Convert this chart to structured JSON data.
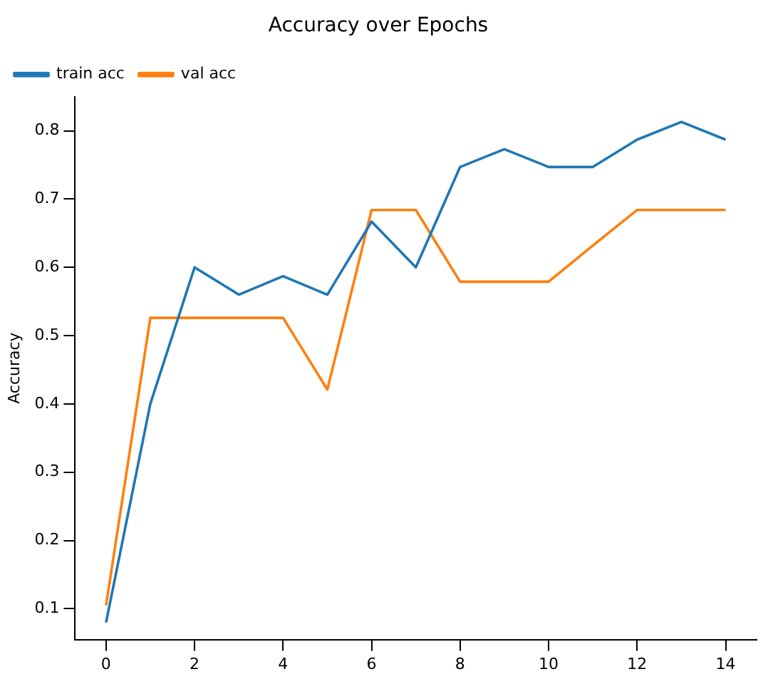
{
  "chart_data": {
    "type": "line",
    "title": "Accuracy over Epochs",
    "ylabel": "Accuracy",
    "x": [
      0,
      1,
      2,
      3,
      4,
      5,
      6,
      7,
      8,
      9,
      10,
      11,
      12,
      13,
      14
    ],
    "series": [
      {
        "name": "train acc",
        "color": "#1f77b4",
        "values": [
          0.08,
          0.4,
          0.6,
          0.56,
          0.587,
          0.56,
          0.667,
          0.6,
          0.747,
          0.773,
          0.747,
          0.747,
          0.787,
          0.813,
          0.787
        ]
      },
      {
        "name": "val acc",
        "color": "#ff7f0e",
        "values": [
          0.105,
          0.526,
          0.526,
          0.526,
          0.526,
          0.421,
          0.684,
          0.684,
          0.579,
          0.579,
          0.579,
          0.632,
          0.684,
          0.684,
          0.684
        ]
      }
    ],
    "xlim": [
      -0.7,
      14.7
    ],
    "xticks": [
      0,
      2,
      4,
      6,
      8,
      10,
      12,
      14
    ],
    "ylim": [
      0.055,
      0.85
    ],
    "yticks": [
      0.1,
      0.2,
      0.3,
      0.4,
      0.5,
      0.6,
      0.7,
      0.8
    ],
    "grid": false,
    "legend": "top left",
    "marker": "none",
    "line_style": "solid"
  }
}
